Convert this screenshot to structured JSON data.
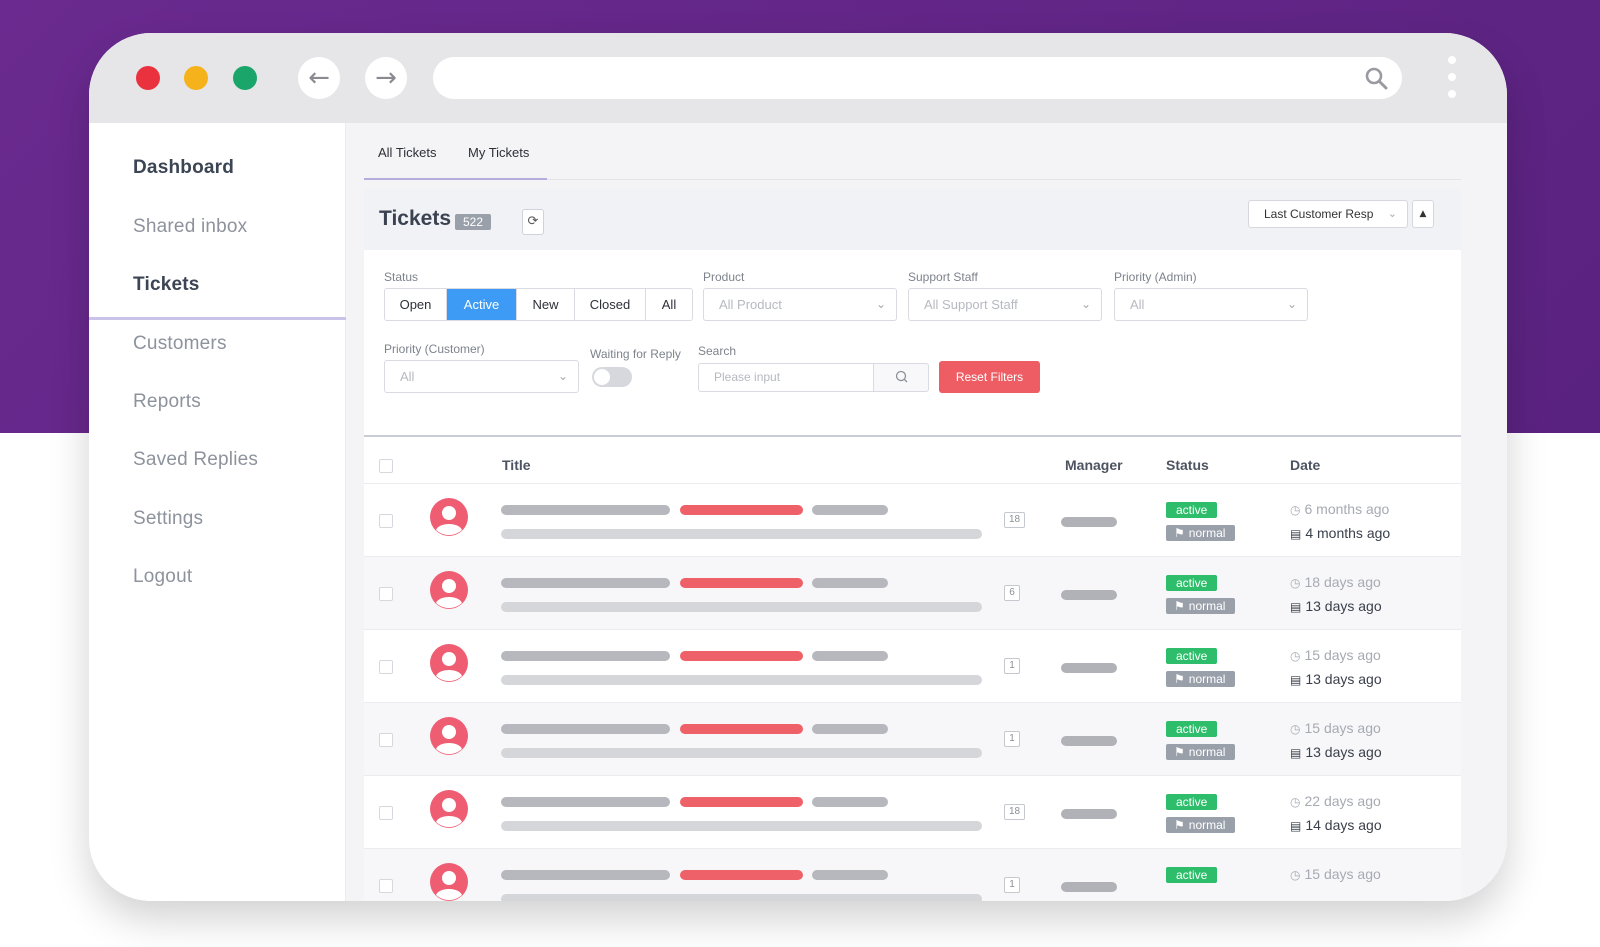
{
  "sidebar": {
    "items": [
      {
        "label": "Dashboard",
        "active": true
      },
      {
        "label": "Shared inbox",
        "active": false
      },
      {
        "label": "Tickets",
        "active": true
      },
      {
        "label": "Customers",
        "active": false
      },
      {
        "label": "Reports",
        "active": false
      },
      {
        "label": "Saved Replies",
        "active": false
      },
      {
        "label": "Settings",
        "active": false
      },
      {
        "label": "Logout",
        "active": false
      }
    ]
  },
  "tabs": [
    {
      "label": "All Tickets",
      "active": true
    },
    {
      "label": "My Tickets",
      "active": false
    }
  ],
  "header": {
    "title": "Tickets",
    "count": "522",
    "sort_label": "Last Customer Resp",
    "sort_dir_icon": "caret-up-icon"
  },
  "filters": {
    "status_label": "Status",
    "status_options": [
      "Open",
      "Active",
      "New",
      "Closed",
      "All"
    ],
    "status_selected": "Active",
    "product_label": "Product",
    "product_value": "All Product",
    "support_label": "Support Staff",
    "support_value": "All Support Staff",
    "priority_admin_label": "Priority (Admin)",
    "priority_admin_value": "All",
    "priority_customer_label": "Priority (Customer)",
    "priority_customer_value": "All",
    "waiting_label": "Waiting for Reply",
    "waiting_on": false,
    "search_label": "Search",
    "search_placeholder": "Please input",
    "reset_label": "Reset Filters"
  },
  "table": {
    "columns": [
      "Title",
      "Manager",
      "Status",
      "Date"
    ],
    "rows": [
      {
        "replies": "18",
        "status": "active",
        "priority": "normal",
        "created": "6 months ago",
        "last_reply": "4 months ago"
      },
      {
        "replies": "6",
        "status": "active",
        "priority": "normal",
        "created": "18 days ago",
        "last_reply": "13 days ago"
      },
      {
        "replies": "1",
        "status": "active",
        "priority": "normal",
        "created": "15 days ago",
        "last_reply": "13 days ago"
      },
      {
        "replies": "1",
        "status": "active",
        "priority": "normal",
        "created": "15 days ago",
        "last_reply": "13 days ago"
      },
      {
        "replies": "18",
        "status": "active",
        "priority": "normal",
        "created": "22 days ago",
        "last_reply": "14 days ago"
      },
      {
        "replies": "1",
        "status": "active",
        "priority": "",
        "created": "15 days ago",
        "last_reply": ""
      }
    ]
  },
  "colors": {
    "background_top": "#6a2a8f",
    "accent": "#3d9bf5",
    "danger": "#ee5d63",
    "status_active": "#2ebd6a",
    "status_normal": "#9aa0aa"
  }
}
